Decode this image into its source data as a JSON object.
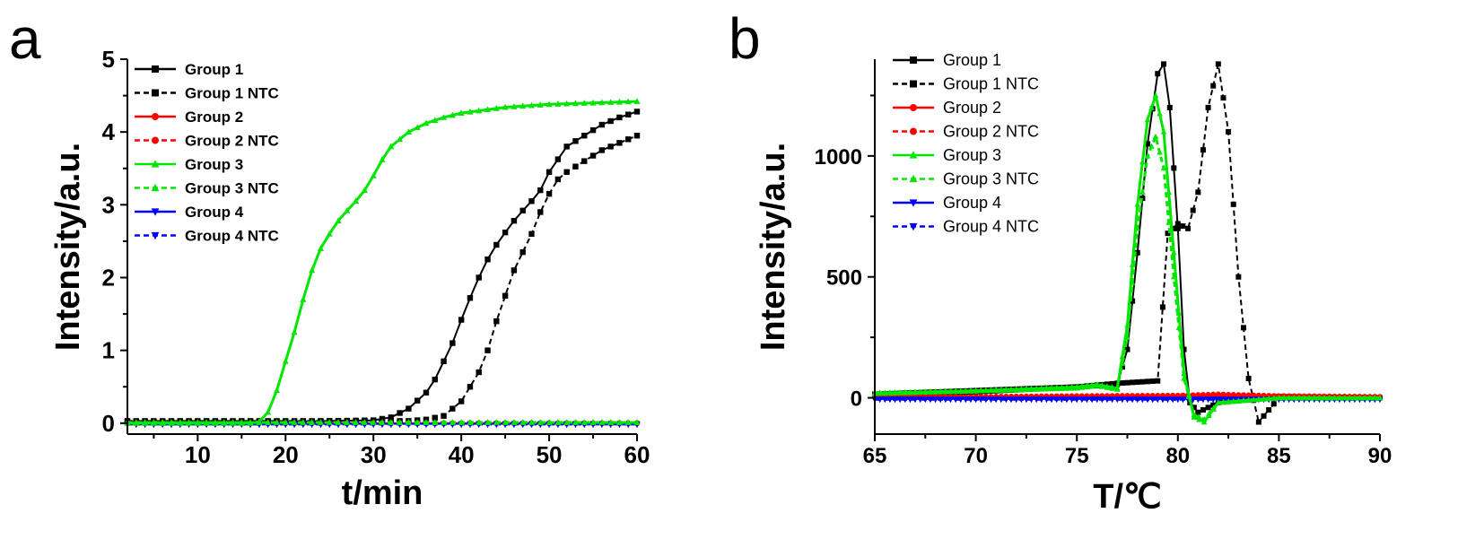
{
  "chart_data": [
    {
      "panel_label": "a",
      "type": "line",
      "xlabel": "t/min",
      "ylabel": "Intensity/a.u.",
      "xlim": [
        2,
        60
      ],
      "ylim": [
        -0.15,
        5
      ],
      "xticks": [
        10,
        20,
        30,
        40,
        50,
        60
      ],
      "yticks": [
        0,
        1,
        2,
        3,
        4,
        5
      ],
      "legend_position": "top-left",
      "series": [
        {
          "name": "Group 1",
          "color": "#000000",
          "style": "solid",
          "marker": "square",
          "x": [
            2,
            10,
            20,
            30,
            32,
            34,
            36,
            37,
            38,
            39,
            40,
            41,
            42,
            43,
            44,
            45,
            46,
            47,
            48,
            49,
            50,
            52,
            54,
            56,
            58,
            60
          ],
          "y": [
            0.02,
            0.02,
            0.02,
            0.04,
            0.08,
            0.2,
            0.42,
            0.6,
            0.85,
            1.1,
            1.42,
            1.72,
            2.0,
            2.25,
            2.45,
            2.62,
            2.78,
            2.92,
            3.05,
            3.2,
            3.45,
            3.8,
            3.95,
            4.1,
            4.2,
            4.28
          ]
        },
        {
          "name": "Group 1 NTC",
          "color": "#000000",
          "style": "dashed",
          "marker": "square",
          "x": [
            2,
            10,
            20,
            30,
            34,
            36,
            38,
            40,
            42,
            43,
            44,
            45,
            46,
            47,
            48,
            49,
            50,
            51,
            52,
            54,
            56,
            58,
            60
          ],
          "y": [
            0.03,
            0.03,
            0.03,
            0.03,
            0.03,
            0.05,
            0.1,
            0.3,
            0.7,
            1.0,
            1.4,
            1.75,
            2.1,
            2.35,
            2.6,
            2.9,
            3.15,
            3.35,
            3.45,
            3.6,
            3.75,
            3.85,
            3.95
          ]
        },
        {
          "name": "Group 2",
          "color": "#ff0000",
          "style": "solid",
          "marker": "circle",
          "x": [
            2,
            10,
            20,
            30,
            40,
            50,
            60
          ],
          "y": [
            0,
            0,
            0,
            0,
            0,
            0,
            0
          ]
        },
        {
          "name": "Group 2 NTC",
          "color": "#ff0000",
          "style": "dashed",
          "marker": "circle",
          "x": [
            2,
            10,
            20,
            30,
            40,
            50,
            60
          ],
          "y": [
            0,
            0,
            0,
            0,
            0,
            0,
            0
          ]
        },
        {
          "name": "Group 3",
          "color": "#00e600",
          "style": "solid",
          "marker": "triangle-up",
          "x": [
            2,
            10,
            16,
            17,
            18,
            19,
            20,
            21,
            22,
            23,
            24,
            25,
            26,
            27,
            28,
            29,
            30,
            31,
            32,
            33,
            34,
            36,
            38,
            40,
            45,
            50,
            55,
            60
          ],
          "y": [
            0,
            0,
            0,
            0.02,
            0.15,
            0.45,
            0.85,
            1.25,
            1.7,
            2.1,
            2.4,
            2.6,
            2.78,
            2.92,
            3.05,
            3.2,
            3.4,
            3.62,
            3.8,
            3.9,
            4.0,
            4.12,
            4.2,
            4.26,
            4.34,
            4.38,
            4.4,
            4.42
          ]
        },
        {
          "name": "Group 3 NTC",
          "color": "#00e600",
          "style": "dashed",
          "marker": "triangle-up",
          "x": [
            2,
            10,
            20,
            30,
            40,
            50,
            60
          ],
          "y": [
            0.01,
            0.01,
            0.01,
            0.01,
            0.01,
            0.01,
            0.01
          ]
        },
        {
          "name": "Group 4",
          "color": "#0000ff",
          "style": "solid",
          "marker": "triangle-down",
          "x": [
            2,
            10,
            20,
            30,
            40,
            50,
            60
          ],
          "y": [
            -0.01,
            -0.01,
            -0.01,
            -0.01,
            -0.01,
            -0.01,
            -0.01
          ]
        },
        {
          "name": "Group 4 NTC",
          "color": "#0000ff",
          "style": "dashed",
          "marker": "triangle-down",
          "x": [
            2,
            10,
            20,
            30,
            40,
            50,
            60
          ],
          "y": [
            -0.02,
            -0.02,
            -0.02,
            -0.02,
            -0.02,
            -0.02,
            -0.02
          ]
        }
      ]
    },
    {
      "panel_label": "b",
      "type": "line",
      "xlabel": "T/℃",
      "ylabel": "Intensity/a.u.",
      "xlim": [
        65,
        90
      ],
      "ylim": [
        -150,
        1400
      ],
      "xticks": [
        65,
        70,
        75,
        80,
        85,
        90
      ],
      "yticks": [
        0,
        500,
        1000
      ],
      "legend_position": "top-left",
      "series": [
        {
          "name": "Group 1",
          "color": "#000000",
          "style": "solid",
          "marker": "square",
          "x": [
            65,
            70,
            75,
            77,
            77.5,
            78,
            78.5,
            79,
            79.3,
            79.6,
            80,
            80.3,
            80.6,
            81,
            81.5,
            82,
            83,
            84,
            85,
            90
          ],
          "y": [
            15,
            30,
            45,
            55,
            200,
            600,
            1050,
            1340,
            1380,
            1200,
            700,
            200,
            -20,
            -60,
            -40,
            -20,
            0,
            0,
            5,
            0
          ]
        },
        {
          "name": "Group 1 NTC",
          "color": "#000000",
          "style": "dashed",
          "marker": "square",
          "x": [
            65,
            70,
            75,
            77,
            78,
            79,
            79.5,
            80,
            80.5,
            81,
            81.5,
            82,
            82.5,
            83,
            83.5,
            84,
            85,
            90
          ],
          "y": [
            10,
            25,
            45,
            60,
            65,
            70,
            680,
            720,
            700,
            850,
            1200,
            1380,
            1100,
            500,
            80,
            -100,
            0,
            0
          ]
        },
        {
          "name": "Group 2",
          "color": "#ff0000",
          "style": "solid",
          "marker": "circle",
          "x": [
            65,
            70,
            75,
            80,
            82,
            85,
            90
          ],
          "y": [
            5,
            5,
            8,
            10,
            15,
            8,
            5
          ]
        },
        {
          "name": "Group 2 NTC",
          "color": "#ff0000",
          "style": "dashed",
          "marker": "circle",
          "x": [
            65,
            70,
            75,
            80,
            85,
            90
          ],
          "y": [
            3,
            3,
            5,
            8,
            6,
            3
          ]
        },
        {
          "name": "Group 3",
          "color": "#00e600",
          "style": "solid",
          "marker": "triangle-up",
          "x": [
            65,
            70,
            75,
            76,
            77,
            77.5,
            78,
            78.5,
            78.9,
            79.3,
            79.8,
            80.3,
            80.8,
            81.3,
            82,
            85,
            90
          ],
          "y": [
            20,
            30,
            45,
            55,
            40,
            300,
            800,
            1150,
            1250,
            1100,
            600,
            100,
            -80,
            -100,
            -20,
            0,
            0
          ]
        },
        {
          "name": "Group 3 NTC",
          "color": "#00e600",
          "style": "dashed",
          "marker": "triangle-up",
          "x": [
            65,
            70,
            75,
            76,
            77,
            77.5,
            78,
            78.5,
            78.9,
            79.3,
            79.8,
            80.3,
            80.8,
            81.3,
            82,
            85,
            90
          ],
          "y": [
            18,
            28,
            40,
            50,
            35,
            250,
            700,
            1000,
            1080,
            950,
            500,
            80,
            -70,
            -90,
            -20,
            0,
            0
          ]
        },
        {
          "name": "Group 4",
          "color": "#0000ff",
          "style": "solid",
          "marker": "triangle-down",
          "x": [
            65,
            70,
            75,
            80,
            85,
            90
          ],
          "y": [
            -5,
            -5,
            -5,
            -5,
            -5,
            -5
          ]
        },
        {
          "name": "Group 4 NTC",
          "color": "#0000ff",
          "style": "dashed",
          "marker": "triangle-down",
          "x": [
            65,
            70,
            75,
            80,
            85,
            90
          ],
          "y": [
            -8,
            -8,
            -8,
            -8,
            -8,
            -8
          ]
        }
      ]
    }
  ]
}
